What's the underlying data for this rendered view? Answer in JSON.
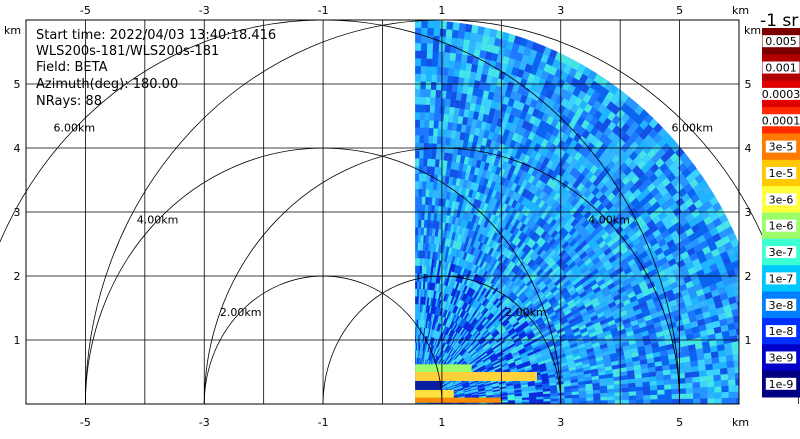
{
  "info": {
    "start_time": "Start time: 2022/04/03 13:40:18.416",
    "instrument": "WLS200s-181/WLS200s-181",
    "field": "Field: BETA",
    "azimuth": "Azimuth(deg): 180.00",
    "nrays": "NRays: 88"
  },
  "colorbar": {
    "unit": "-1 sr",
    "labels": [
      "0.005",
      "0.001",
      "0.0003",
      "0.0001",
      "3e-5",
      "1e-5",
      "3e-6",
      "1e-6",
      "3e-7",
      "1e-7",
      "3e-8",
      "1e-8",
      "3e-9",
      "1e-9"
    ],
    "colors": [
      "#7a0000",
      "#b00000",
      "#e00000",
      "#ff2a00",
      "#ff7a00",
      "#ffc800",
      "#ffff3c",
      "#9cff6a",
      "#3cffd2",
      "#00c8ff",
      "#0080ff",
      "#0030ff",
      "#0000c8",
      "#000080"
    ]
  },
  "chart_data": {
    "type": "heatmap",
    "title": "",
    "x_unit": "km",
    "y_unit": "km",
    "xlim": [
      -6,
      6
    ],
    "ylim": [
      0,
      6
    ],
    "x_ticks": [
      -5,
      -3,
      -1,
      1,
      3,
      5
    ],
    "y_ticks": [
      1,
      2,
      3,
      4,
      5
    ],
    "grid": true,
    "range_rings_km": [
      2,
      4,
      6
    ],
    "range_ring_labels": [
      "2.00km",
      "4.00km",
      "6.00km"
    ],
    "field": "BETA",
    "azimuth_deg": 180.0,
    "nrays": 88,
    "max_range_km": 6.0
  }
}
